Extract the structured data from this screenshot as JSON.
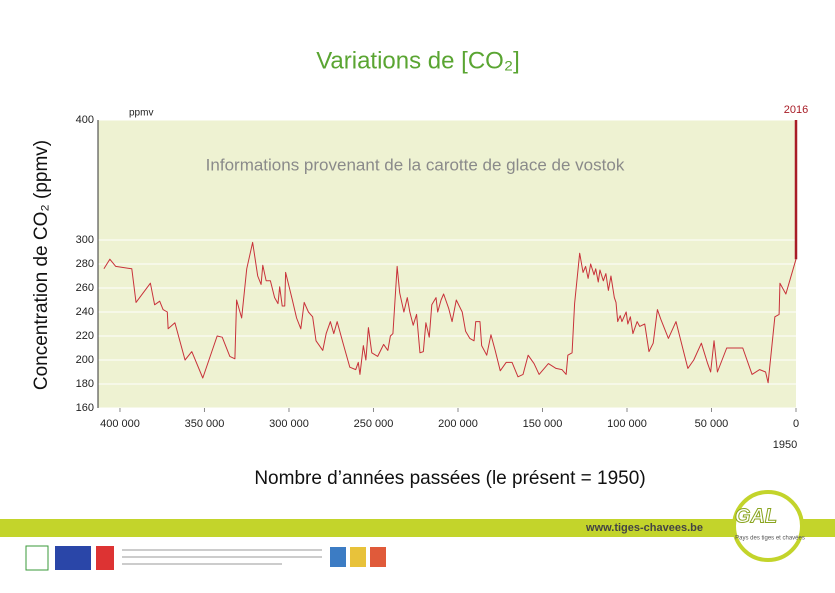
{
  "chart_data": {
    "type": "line",
    "title": "Variations de [CO₂]",
    "annotation": "Informations provenant de la carotte de glace de vostok",
    "y_unit": "ppmv",
    "ylabel": "Concentration de CO₂ (ppmv)",
    "xlabel": "Nombre d’années passées (le présent = 1950)",
    "x_origin_label": "1950",
    "background": "#eef2d2",
    "grid": true,
    "xlim": [
      413000,
      0
    ],
    "xticks": [
      {
        "value": 400000,
        "label": "400 000"
      },
      {
        "value": 350000,
        "label": "350 000"
      },
      {
        "value": 300000,
        "label": "300 000"
      },
      {
        "value": 250000,
        "label": "250 000"
      },
      {
        "value": 200000,
        "label": "200 000"
      },
      {
        "value": 150000,
        "label": "150 000"
      },
      {
        "value": 100000,
        "label": "100 000"
      },
      {
        "value": 50000,
        "label": "50 000"
      },
      0
    ],
    "ylim": [
      160,
      400
    ],
    "yticks": [
      160,
      180,
      200,
      220,
      240,
      260,
      280,
      300,
      400
    ],
    "series": [
      {
        "color": "#c8323a",
        "x": [
          409500,
          406000,
          402500,
          393000,
          390500,
          382000,
          379500,
          376500,
          374500,
          372000,
          371500,
          367500,
          361500,
          357500,
          351000,
          342500,
          339500,
          335000,
          332000,
          331000,
          328000,
          325000,
          321500,
          318500,
          316500,
          315500,
          313500,
          311000,
          308500,
          306500,
          305500,
          304000,
          302500,
          302000,
          298000,
          295500,
          293000,
          291000,
          288500,
          286000,
          284000,
          280000,
          278000,
          275500,
          273500,
          271500,
          268000,
          264000,
          260500,
          259000,
          258000,
          256000,
          254500,
          253000,
          251000,
          247500,
          244000,
          241500,
          240000,
          238500,
          236000,
          234500,
          232000,
          230000,
          228500,
          226500,
          224500,
          222500,
          220500,
          219000,
          217000,
          215500,
          213000,
          212000,
          210000,
          208500,
          205500,
          203500,
          201000,
          197500,
          195500,
          193000,
          190500,
          189500,
          187000,
          186000,
          183000,
          180500,
          178000,
          175000,
          171500,
          168000,
          164500,
          161500,
          158500,
          155000,
          152000,
          146500,
          142000,
          138500,
          136000,
          135000,
          132500,
          131000,
          128000,
          126000,
          124500,
          123000,
          121500,
          119500,
          118500,
          117000,
          116000,
          114000,
          112500,
          111000,
          109500,
          107500,
          106500,
          105500,
          104000,
          103000,
          100500,
          99500,
          98000,
          96500,
          94000,
          92500,
          89500,
          87000,
          84500,
          82000,
          80000,
          75500,
          71000,
          64000,
          60500,
          56000,
          52500,
          50500,
          48500,
          46500,
          41000,
          31500,
          26000,
          21500,
          18000,
          16500,
          12500,
          10000,
          9500,
          6000,
          0
        ],
        "values": [
          276,
          284,
          278,
          276,
          248,
          264,
          246,
          249,
          242,
          240,
          226,
          231,
          200,
          207,
          185,
          220,
          219,
          203,
          201,
          250,
          235,
          276,
          298,
          270,
          263,
          279,
          266,
          266,
          252,
          247,
          261,
          245,
          245,
          273,
          250,
          235,
          226,
          248,
          240,
          236,
          216,
          208,
          222,
          232,
          222,
          232,
          214,
          194,
          192,
          198,
          188,
          212,
          200,
          227,
          206,
          203,
          213,
          208,
          220,
          222,
          278,
          256,
          240,
          252,
          240,
          229,
          238,
          206,
          207,
          231,
          219,
          246,
          252,
          240,
          250,
          255,
          243,
          232,
          250,
          240,
          224,
          218,
          216,
          232,
          232,
          212,
          204,
          221,
          208,
          191,
          198,
          198,
          186,
          188,
          204,
          197,
          188,
          197,
          193,
          192,
          188,
          204,
          206,
          247,
          289,
          273,
          278,
          268,
          280,
          271,
          276,
          265,
          275,
          266,
          272,
          258,
          270,
          252,
          248,
          232,
          237,
          232,
          240,
          230,
          236,
          222,
          232,
          228,
          230,
          207,
          214,
          242,
          234,
          218,
          232,
          193,
          200,
          214,
          198,
          190,
          216,
          190,
          210,
          210,
          188,
          192,
          190,
          181,
          236,
          238,
          264,
          255,
          284
        ]
      },
      {
        "label": "2016",
        "color": "#a81c26",
        "x": [
          0,
          0
        ],
        "values": [
          284,
          400
        ]
      }
    ]
  },
  "footer": {
    "url": "www.tiges-chavees.be",
    "logo": "GAL",
    "logo_text": "Pays des tiges et chavées"
  }
}
